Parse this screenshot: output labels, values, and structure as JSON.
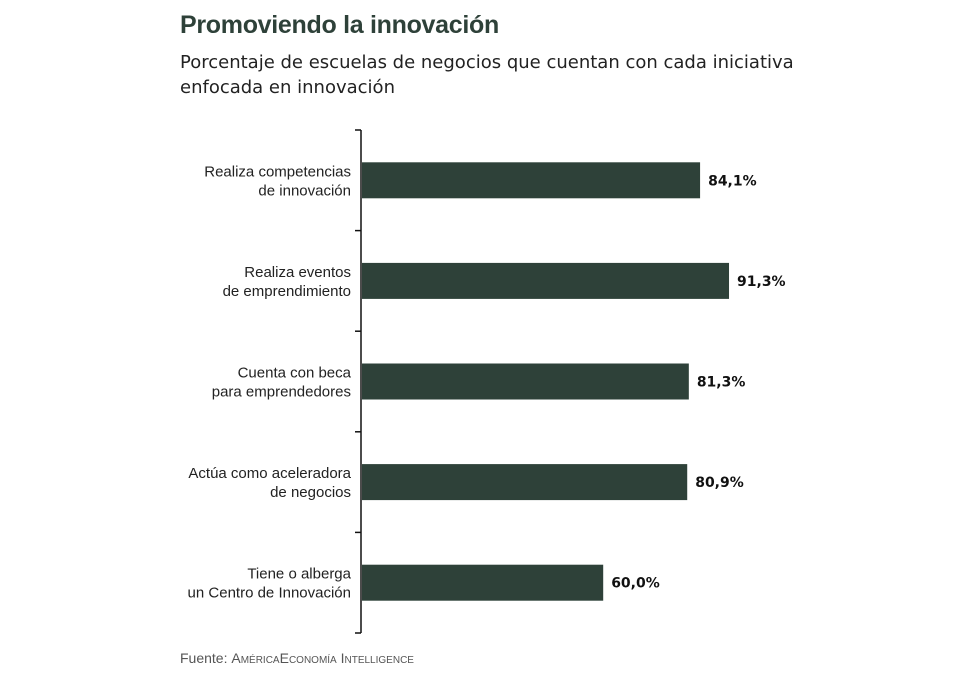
{
  "chart_data": {
    "type": "bar",
    "orientation": "horizontal",
    "title": "Promoviendo la innovación",
    "subtitle": "Porcentaje de escuelas de negocios que cuentan con cada iniciativa enfocada en innovación",
    "categories": [
      [
        "Realiza competencias",
        "de innovación"
      ],
      [
        "Realiza eventos",
        "de emprendimiento"
      ],
      [
        "Cuenta con beca",
        "para emprendedores"
      ],
      [
        "Actúa como aceleradora",
        "de negocios"
      ],
      [
        "Tiene o alberga",
        "un Centro de Innovación"
      ]
    ],
    "values": [
      84.1,
      91.3,
      81.3,
      80.9,
      60.0
    ],
    "value_labels": [
      "84,1%",
      "91,3%",
      "81,3%",
      "80,9%",
      "60,0%"
    ],
    "unit": "%",
    "xlim": [
      0,
      100
    ],
    "grid": false,
    "bar_color": "#2e4139"
  },
  "source": {
    "prefix": "Fuente: ",
    "name": "AméricaEconomía Intelligence"
  }
}
